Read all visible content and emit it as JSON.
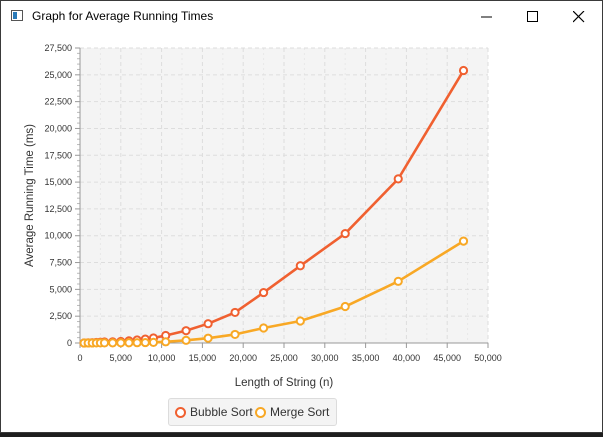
{
  "window": {
    "title": "Graph for Average Running Times",
    "minimize_icon": "minimize-icon",
    "maximize_icon": "maximize-icon",
    "close_icon": "close-icon"
  },
  "chart_data": {
    "type": "line",
    "title": "",
    "xlabel": "Length of String (n)",
    "ylabel": "Average Running Time (ms)",
    "xlim": [
      0,
      50000
    ],
    "ylim": [
      0,
      27500
    ],
    "x_ticks": [
      "0",
      "5,000",
      "10,000",
      "15,000",
      "20,000",
      "25,000",
      "30,000",
      "35,000",
      "40,000",
      "45,000",
      "50,000"
    ],
    "y_ticks": [
      "0",
      "2,500",
      "5,000",
      "7,500",
      "10,000",
      "12,500",
      "15,000",
      "17,500",
      "20,000",
      "22,500",
      "25,000",
      "27,500"
    ],
    "grid": true,
    "legend_position": "bottom",
    "series": [
      {
        "name": "Bubble Sort",
        "color": "#f06030",
        "points": [
          [
            500,
            5
          ],
          [
            1000,
            15
          ],
          [
            1500,
            30
          ],
          [
            2000,
            50
          ],
          [
            2500,
            70
          ],
          [
            3000,
            90
          ],
          [
            4000,
            110
          ],
          [
            5000,
            140
          ],
          [
            6000,
            200
          ],
          [
            7000,
            280
          ],
          [
            8000,
            360
          ],
          [
            9000,
            470
          ],
          [
            10500,
            700
          ],
          [
            13000,
            1150
          ],
          [
            15700,
            1800
          ],
          [
            19000,
            2850
          ],
          [
            22500,
            4700
          ],
          [
            27000,
            7200
          ],
          [
            32500,
            10200
          ],
          [
            39000,
            15300
          ],
          [
            47000,
            25400
          ]
        ]
      },
      {
        "name": "Merge Sort",
        "color": "#f8a825",
        "points": [
          [
            500,
            2
          ],
          [
            1000,
            4
          ],
          [
            1500,
            6
          ],
          [
            2000,
            8
          ],
          [
            2500,
            10
          ],
          [
            3000,
            12
          ],
          [
            4000,
            15
          ],
          [
            5000,
            18
          ],
          [
            6000,
            22
          ],
          [
            7000,
            28
          ],
          [
            8000,
            40
          ],
          [
            9000,
            60
          ],
          [
            10500,
            110
          ],
          [
            13000,
            250
          ],
          [
            15700,
            450
          ],
          [
            19000,
            800
          ],
          [
            22500,
            1400
          ],
          [
            27000,
            2050
          ],
          [
            32500,
            3400
          ],
          [
            39000,
            5750
          ],
          [
            47000,
            9500
          ]
        ]
      }
    ]
  }
}
